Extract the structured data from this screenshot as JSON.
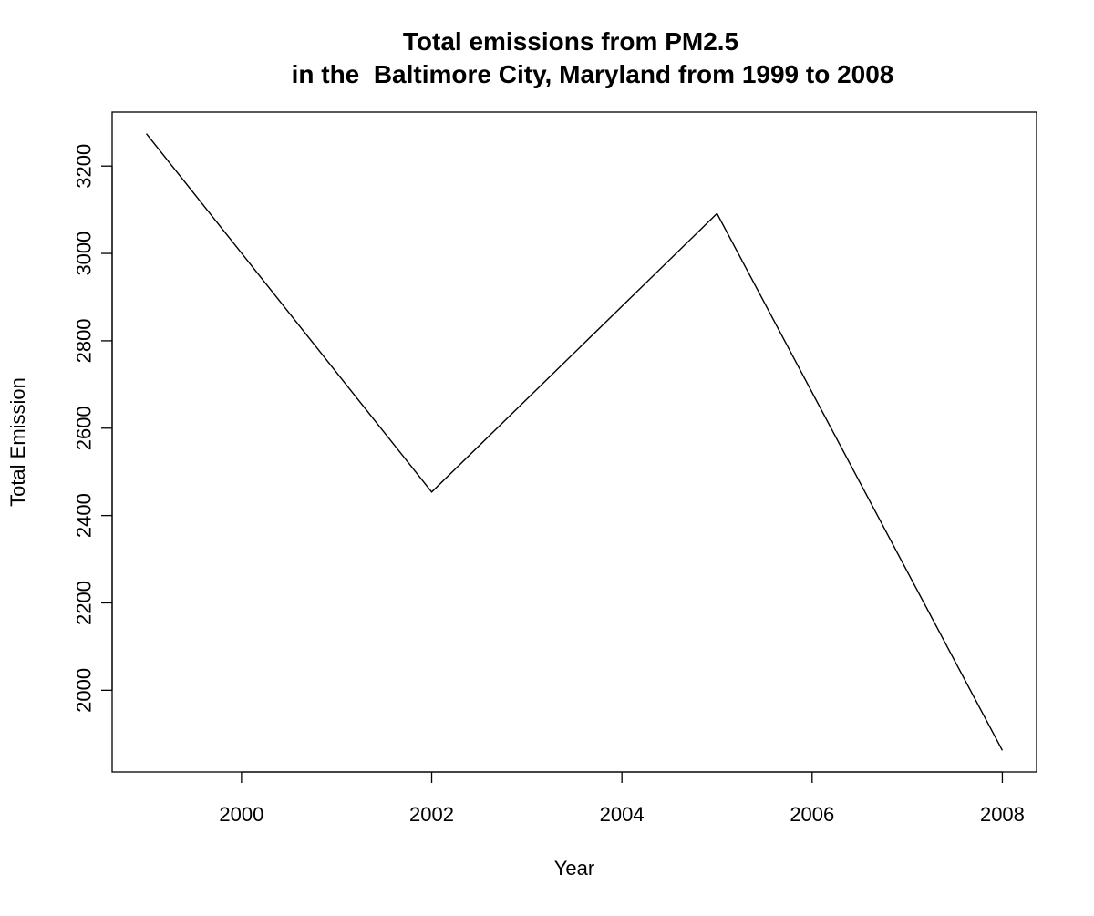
{
  "chart_data": {
    "type": "line",
    "title": "Total emissions from PM2.5",
    "subtitle": "in the  Baltimore City, Maryland from 1999 to 2008",
    "xlabel": "Year",
    "ylabel": "Total Emission",
    "x": [
      1999,
      2002,
      2005,
      2008
    ],
    "series": [
      {
        "values": [
          3274.18,
          2453.92,
          3091.35,
          1862.28
        ]
      }
    ],
    "x_ticks": [
      2000,
      2002,
      2004,
      2006,
      2008
    ],
    "y_ticks": [
      2000,
      2200,
      2400,
      2600,
      2800,
      3000,
      3200
    ],
    "xlim": [
      1998.64,
      2008.36
    ],
    "ylim": [
      1812.92,
      3323.54
    ],
    "grid": false,
    "legend": "none",
    "line_color": "#000000",
    "box_color": "#000000"
  }
}
